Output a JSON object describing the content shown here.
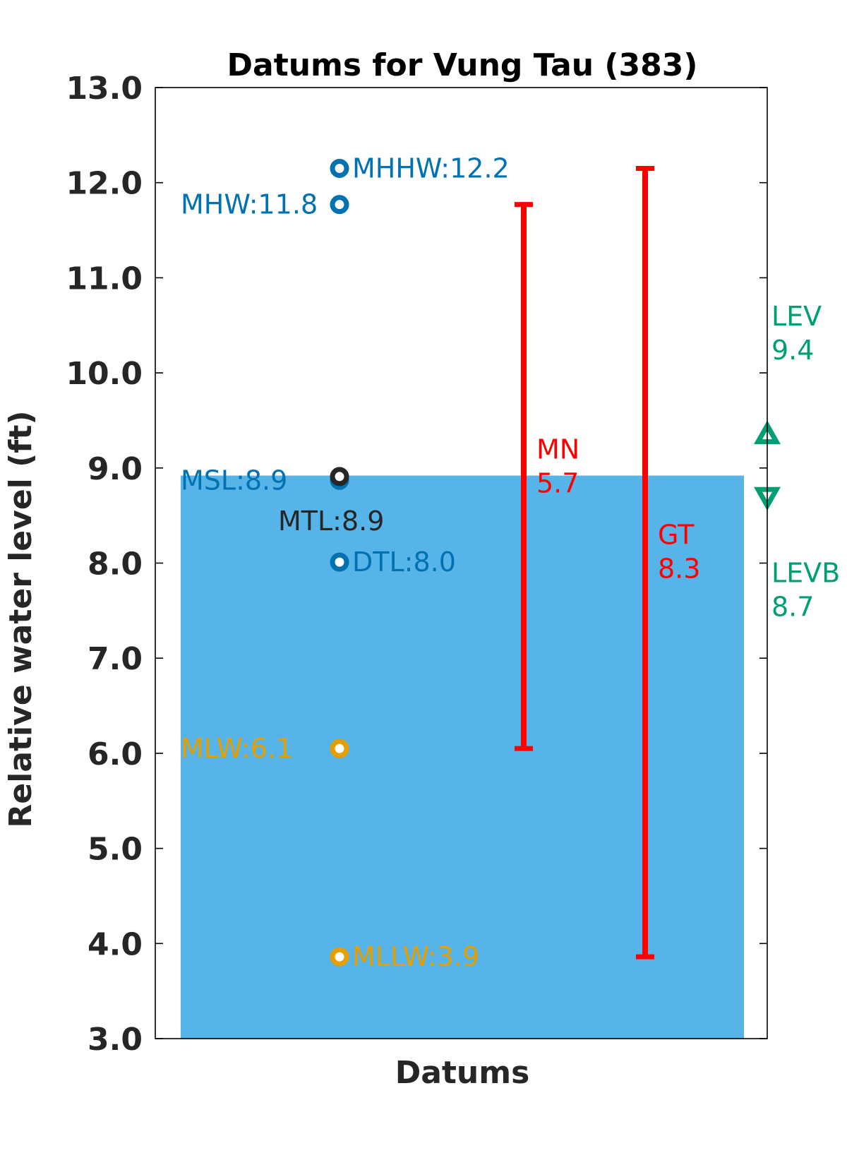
{
  "chart_data": {
    "type": "scatter",
    "title": "Datums for Vung Tau (383)",
    "xlabel": "Datums",
    "ylabel": "Relative water level (ft)",
    "ylim": [
      3.0,
      13.0
    ],
    "yticks": [
      "3.0",
      "4.0",
      "5.0",
      "6.0",
      "7.0",
      "8.0",
      "9.0",
      "10.0",
      "11.0",
      "12.0",
      "13.0"
    ],
    "grid": false,
    "background_fill": {
      "from": 3.0,
      "to": 8.92,
      "color": "#56B4E9"
    },
    "datums": [
      {
        "name": "MHHW",
        "label": "MHHW:12.2",
        "value": 12.15,
        "color": "#0072B2"
      },
      {
        "name": "MHW",
        "label": "MHW:11.8",
        "value": 11.77,
        "color": "#0072B2"
      },
      {
        "name": "MSL",
        "label": "MSL:8.9",
        "value": 8.87,
        "color": "#0072B2"
      },
      {
        "name": "MTL",
        "label": "MTL:8.9",
        "value": 8.91,
        "color": "#262626"
      },
      {
        "name": "DTL",
        "label": "DTL:8.0",
        "value": 8.01,
        "color": "#0072B2"
      },
      {
        "name": "MLW",
        "label": "MLW:6.1",
        "value": 6.05,
        "color": "#E69F00"
      },
      {
        "name": "MLLW",
        "label": "MLLW:3.9",
        "value": 3.86,
        "color": "#E69F00"
      }
    ],
    "ranges": [
      {
        "name": "MN",
        "label_name": "MN",
        "label_value": "5.7",
        "low": 6.05,
        "high": 11.77,
        "color": "#FF0000"
      },
      {
        "name": "GT",
        "label_name": "GT",
        "label_value": "8.3",
        "low": 3.86,
        "high": 12.15,
        "color": "#FF0000"
      }
    ],
    "extremes": [
      {
        "name": "LEV",
        "label_name": "LEV",
        "label_value": "9.4",
        "value": 9.35,
        "marker": "triangle-up",
        "color": "#009E73"
      },
      {
        "name": "LEVB",
        "label_name": "LEVB",
        "label_value": "8.7",
        "value": 8.7,
        "marker": "triangle-down",
        "color": "#009E73"
      }
    ]
  }
}
